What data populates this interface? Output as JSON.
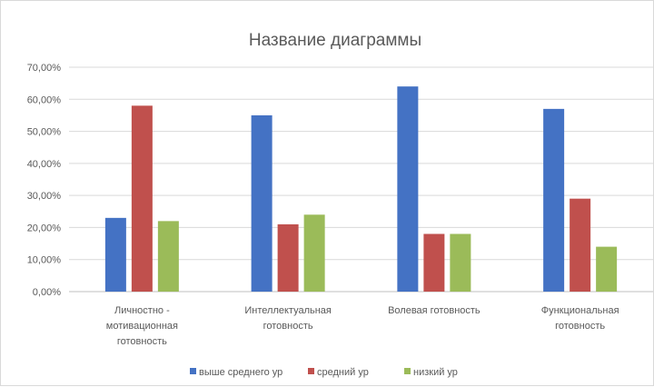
{
  "chart_data": {
    "type": "bar",
    "title": "Название диаграммы",
    "categories": [
      [
        "Личностно -",
        "мотивационная",
        "готовность"
      ],
      [
        "Интеллектуальная",
        "готовность"
      ],
      [
        "Волевая готовность"
      ],
      [
        "Функциональная",
        "готовность"
      ]
    ],
    "series": [
      {
        "name": "выше среднего ур",
        "color": "#4472C4",
        "values": [
          23,
          55,
          64,
          57
        ]
      },
      {
        "name": "средний ур",
        "color": "#C0504D",
        "values": [
          58,
          21,
          18,
          29
        ]
      },
      {
        "name": "низкий ур",
        "color": "#9BBB59",
        "values": [
          22,
          24,
          18,
          14
        ]
      }
    ],
    "ylim": [
      0,
      70
    ],
    "yticks": [
      "0,00%",
      "10,00%",
      "20,00%",
      "30,00%",
      "40,00%",
      "50,00%",
      "60,00%",
      "70,00%"
    ],
    "y_unit": "%",
    "grid": true,
    "legend": "bottom"
  }
}
